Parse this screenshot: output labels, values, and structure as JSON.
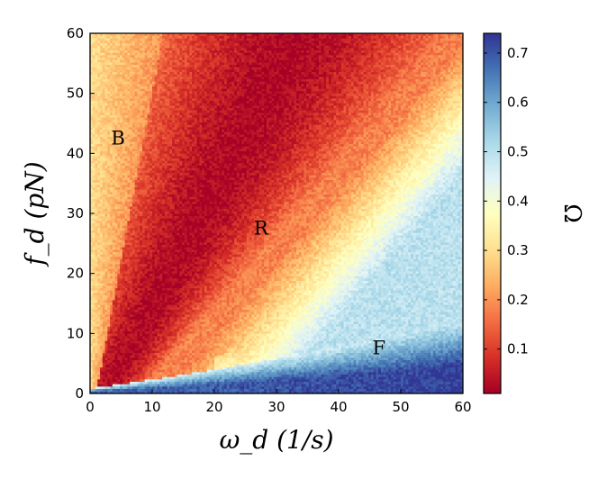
{
  "chart_data": {
    "type": "heatmap",
    "xlabel": "ω_d (1/s)",
    "ylabel": "f_d (pN)",
    "colorbar_label": "Ω",
    "xlim": [
      0,
      60
    ],
    "ylim": [
      0,
      60
    ],
    "x_ticks": [
      "0",
      "10",
      "20",
      "30",
      "40",
      "50",
      "60"
    ],
    "y_ticks": [
      "0",
      "10",
      "20",
      "30",
      "40",
      "50",
      "60"
    ],
    "colorbar_range": [
      0.01,
      0.74
    ],
    "colorbar_ticks": [
      "0.1",
      "0.2",
      "0.3",
      "0.4",
      "0.5",
      "0.6",
      "0.7"
    ],
    "colormap": "RdYlBu",
    "grid": false,
    "regions": [
      {
        "label": "B",
        "x": 4.5,
        "y": 41.5
      },
      {
        "label": "R",
        "x": 27.5,
        "y": 26.5
      },
      {
        "label": "F",
        "x": 46.5,
        "y": 6.5
      }
    ],
    "value_profile": {
      "description_free_notes": "",
      "grid_cells": 150,
      "low_value": 0.02,
      "high_value_top_left": 0.28,
      "high_value_bottom_right": 0.6
    }
  }
}
